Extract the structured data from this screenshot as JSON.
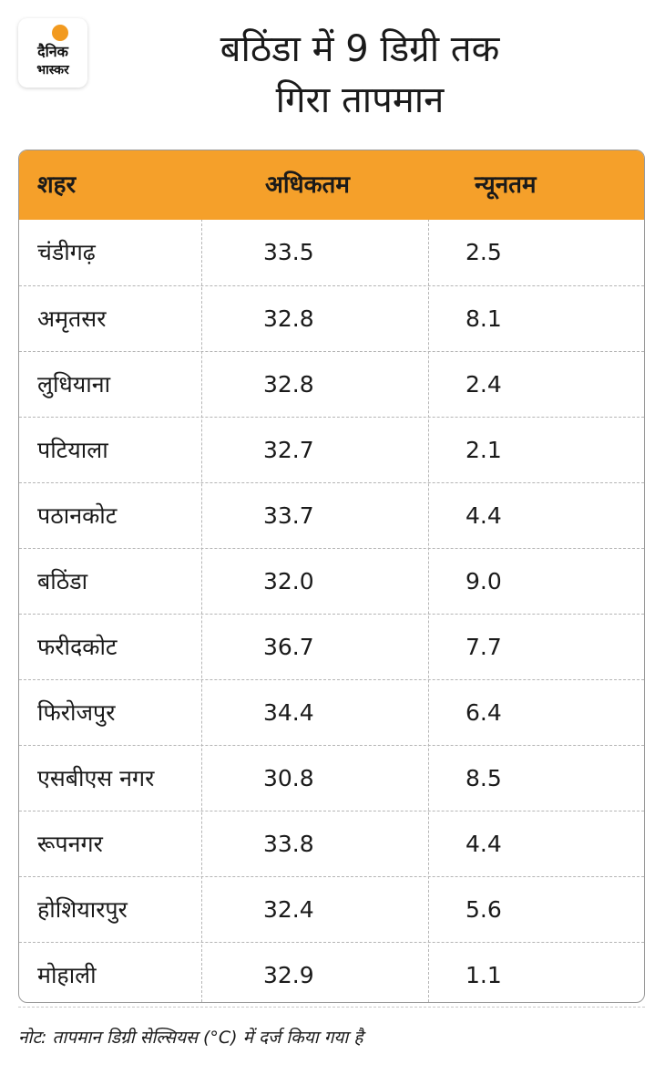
{
  "logo": {
    "line1": "दैनिक",
    "line2": "भास्कर",
    "accent": "#f29a1f"
  },
  "title": {
    "line1": "बठिंडा में 9 डिग्री तक",
    "line2": "गिरा  तापमान"
  },
  "table": {
    "header_color": "#f5a02a",
    "headers": [
      "शहर",
      "अधिकतम",
      "न्यूनतम"
    ],
    "rows": [
      {
        "city": " चंडीगढ़",
        "max": "33.5",
        "min": "2.5"
      },
      {
        "city": "अमृतसर",
        "max": "32.8",
        "min": "8.1"
      },
      {
        "city": "लुधियाना",
        "max": "32.8",
        "min": "2.4"
      },
      {
        "city": "पटियाला",
        "max": "32.7",
        "min": "2.1"
      },
      {
        "city": "पठानकोट",
        "max": "33.7",
        "min": "4.4"
      },
      {
        "city": "बठिंडा",
        "max": "32.0",
        "min": "9.0"
      },
      {
        "city": "फरीदकोट",
        "max": "36.7",
        "min": "7.7"
      },
      {
        "city": "फिरोजपुर",
        "max": "34.4",
        "min": "6.4"
      },
      {
        "city": "एसबीएस नगर",
        "max": "30.8",
        "min": " 8.5"
      },
      {
        "city": "रूपनगर",
        "max": "33.8",
        "min": "4.4"
      },
      {
        "city": "होशियारपुर",
        "max": "32.4",
        "min": "5.6"
      },
      {
        "city": "मोहाली",
        "max": "32.9",
        "min": "1.1"
      }
    ]
  },
  "note": "नोट: तापमान डिग्री सेल्सियस (°C) में दर्ज किया गया है"
}
